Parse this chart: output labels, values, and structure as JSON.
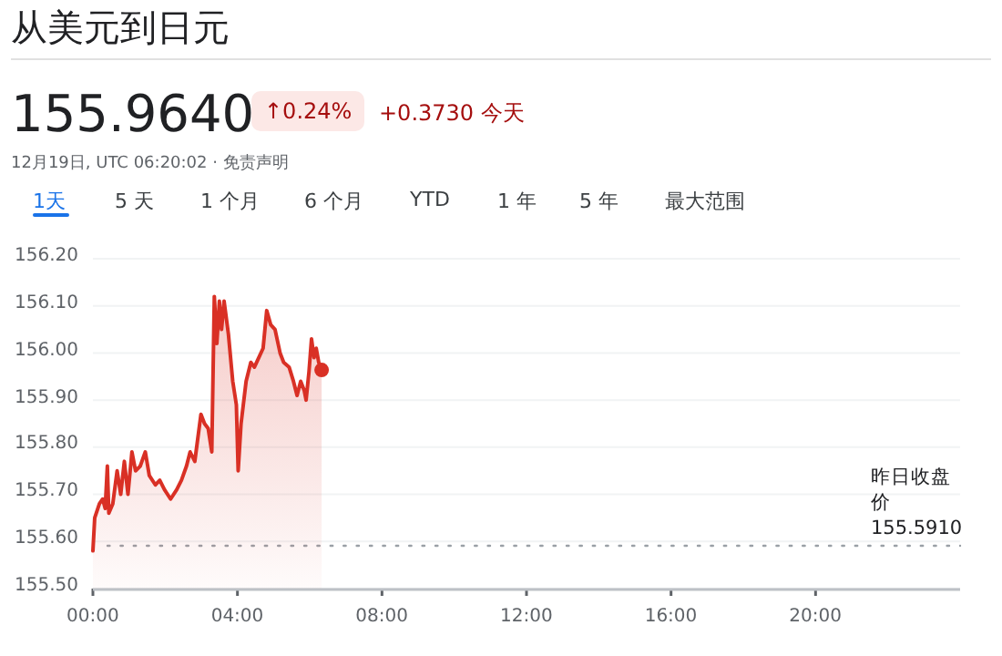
{
  "chart_data": {
    "type": "area",
    "title": "从美元到日元",
    "subtitle": "12月19日, UTC 06:20:02 · 免责声明",
    "annotations": [
      "155.9640",
      "↑0.24%",
      "+0.3730 今天",
      "1天",
      "5 天",
      "1 个月",
      "6 个月",
      "YTD",
      "1 年",
      "5 年",
      "最大范围"
    ],
    "color": "#d93025",
    "x": [
      0,
      0.05,
      0.18,
      0.27,
      0.34,
      0.4,
      0.44,
      0.55,
      0.67,
      0.77,
      0.87,
      0.97,
      1.08,
      1.18,
      1.31,
      1.45,
      1.56,
      1.73,
      1.85,
      1.98,
      2.15,
      2.32,
      2.45,
      2.59,
      2.69,
      2.82,
      2.99,
      3.09,
      3.19,
      3.29,
      3.36,
      3.43,
      3.5,
      3.56,
      3.63,
      3.75,
      3.87,
      3.97,
      4.02,
      4.1,
      4.24,
      4.37,
      4.47,
      4.59,
      4.71,
      4.81,
      4.92,
      5.04,
      5.18,
      5.28,
      5.43,
      5.55,
      5.65,
      5.75,
      5.85,
      5.9,
      5.98,
      6.05,
      6.12,
      6.18,
      6.25,
      6.33
    ],
    "values": [
      155.58,
      155.65,
      155.68,
      155.69,
      155.67,
      155.76,
      155.66,
      155.68,
      155.75,
      155.7,
      155.77,
      155.7,
      155.79,
      155.75,
      155.76,
      155.79,
      155.74,
      155.72,
      155.73,
      155.71,
      155.69,
      155.71,
      155.73,
      155.76,
      155.79,
      155.77,
      155.87,
      155.85,
      155.84,
      155.79,
      156.12,
      156.02,
      156.11,
      156.05,
      156.11,
      156.04,
      155.94,
      155.89,
      155.75,
      155.85,
      155.94,
      155.98,
      155.97,
      155.99,
      156.01,
      156.09,
      156.06,
      156.05,
      156.0,
      155.98,
      155.97,
      155.94,
      155.91,
      155.94,
      155.92,
      155.9,
      155.96,
      156.03,
      155.99,
      156.01,
      155.98,
      155.964
    ],
    "xlim": [
      0,
      24
    ],
    "xticks": [
      {
        "value": 0,
        "label": "00:00"
      },
      {
        "value": 4,
        "label": "04:00"
      },
      {
        "value": 8,
        "label": "08:00"
      },
      {
        "value": 12,
        "label": "12:00"
      },
      {
        "value": 16,
        "label": "16:00"
      },
      {
        "value": 20,
        "label": "20:00"
      }
    ],
    "ylim": [
      155.5,
      156.2
    ],
    "yticks": [
      {
        "value": 155.5,
        "label": "155.50"
      },
      {
        "value": 155.6,
        "label": "155.60"
      },
      {
        "value": 155.7,
        "label": "155.70"
      },
      {
        "value": 155.8,
        "label": "155.80"
      },
      {
        "value": 155.9,
        "label": "155.90"
      },
      {
        "value": 156.0,
        "label": "156.00"
      },
      {
        "value": 156.1,
        "label": "156.10"
      },
      {
        "value": 156.2,
        "label": "156.20"
      }
    ],
    "grid": "y",
    "ref_lines": [
      {
        "axis": "y",
        "value": 155.591,
        "label": "昨日收盘价 155.5910",
        "line_style": "dotted",
        "color": "#9aa0a6"
      }
    ]
  }
}
